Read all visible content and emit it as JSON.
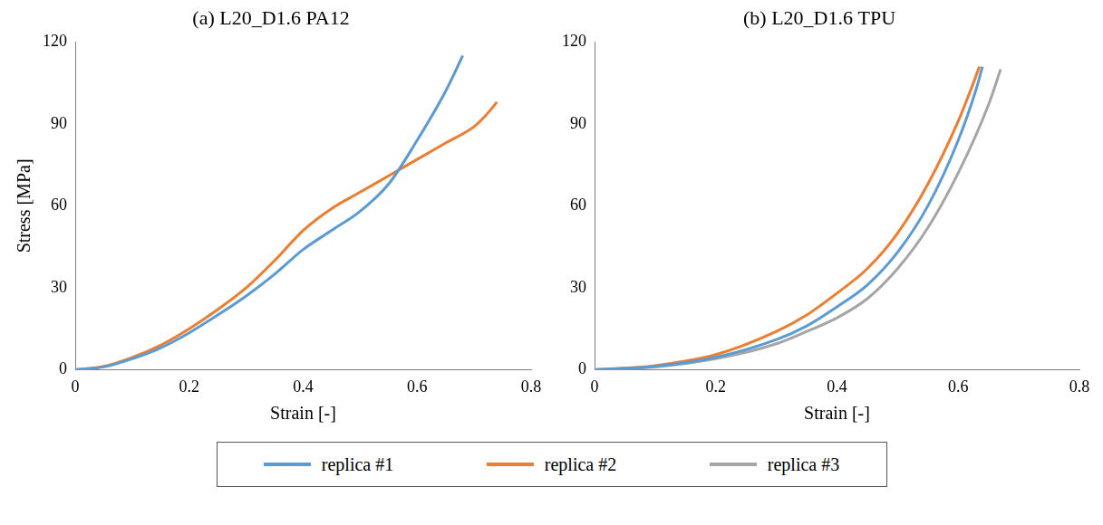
{
  "chart_data": [
    {
      "type": "line",
      "title": "(a) L20_D1.6 PA12",
      "x_label": "Strain [-]",
      "y_label": "Stress [MPa]",
      "xlim": [
        0,
        0.8
      ],
      "xticks": [
        0,
        0.2,
        0.4,
        0.6,
        0.8
      ],
      "ylim": [
        0,
        120
      ],
      "yticks": [
        0,
        30,
        60,
        90,
        120
      ],
      "grid": false,
      "legend": "bottom",
      "series": [
        {
          "name": "replica #1",
          "color": "#5b9bd5",
          "x": [
            0,
            0.05,
            0.1,
            0.15,
            0.2,
            0.25,
            0.3,
            0.35,
            0.4,
            0.45,
            0.5,
            0.55,
            0.6,
            0.65,
            0.68
          ],
          "values": [
            0,
            1,
            4,
            8,
            13.5,
            20,
            27,
            35,
            44,
            51,
            58,
            68,
            84,
            102,
            115
          ]
        },
        {
          "name": "replica #2",
          "color": "#ed7d31",
          "x": [
            0,
            0.05,
            0.1,
            0.15,
            0.2,
            0.25,
            0.3,
            0.35,
            0.4,
            0.45,
            0.5,
            0.55,
            0.6,
            0.65,
            0.7,
            0.72,
            0.74
          ],
          "values": [
            0,
            1.2,
            4.5,
            9,
            15,
            22,
            30,
            40,
            51,
            59,
            65,
            71,
            77,
            83,
            89,
            93,
            98
          ]
        }
      ]
    },
    {
      "type": "line",
      "title": "(b) L20_D1.6 TPU",
      "x_label": "Strain [-]",
      "xlim": [
        0,
        0.8
      ],
      "xticks": [
        0,
        0.2,
        0.4,
        0.6,
        0.8
      ],
      "ylim": [
        0,
        120
      ],
      "yticks": [
        0,
        30,
        60,
        90,
        120
      ],
      "grid": false,
      "legend": "bottom",
      "series": [
        {
          "name": "replica #1",
          "color": "#5b9bd5",
          "x": [
            0,
            0.1,
            0.2,
            0.3,
            0.35,
            0.4,
            0.45,
            0.5,
            0.55,
            0.6,
            0.63,
            0.64
          ],
          "values": [
            0,
            1.2,
            4.5,
            11,
            16,
            23,
            31,
            43,
            60,
            84,
            103,
            111
          ]
        },
        {
          "name": "replica #2",
          "color": "#ed7d31",
          "x": [
            0,
            0.1,
            0.2,
            0.3,
            0.35,
            0.4,
            0.45,
            0.5,
            0.55,
            0.6,
            0.625,
            0.635
          ],
          "values": [
            0,
            1.5,
            5.5,
            14,
            20,
            28,
            37,
            50,
            68,
            91,
            105,
            111
          ]
        },
        {
          "name": "replica #3",
          "color": "#a5a5a5",
          "x": [
            0,
            0.1,
            0.2,
            0.3,
            0.35,
            0.4,
            0.45,
            0.5,
            0.55,
            0.6,
            0.65,
            0.67
          ],
          "values": [
            0,
            1,
            4,
            9.5,
            14,
            19,
            26,
            37,
            52,
            72,
            97,
            110
          ]
        }
      ]
    }
  ]
}
